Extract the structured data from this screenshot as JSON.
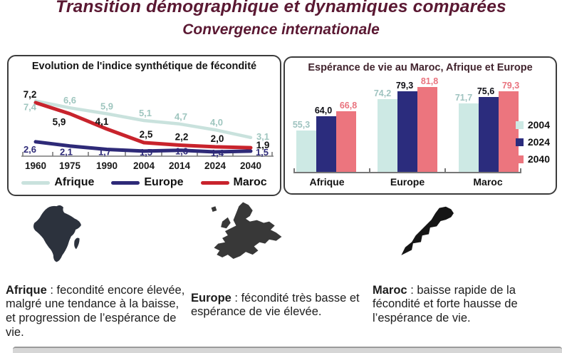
{
  "page": {
    "title": "Transition démographique et dynamiques comparées",
    "subtitle": "Convergence internationale"
  },
  "colors": {
    "title_maroon": "#5a1832",
    "afrique_line": "#c9e2dd",
    "afrique_label": "#9fc6bf",
    "europe_line": "#2e2a78",
    "maroc_line": "#c8232c",
    "maroc_label": "#111111",
    "bar_2004": "#cde9e4",
    "bar_2024": "#2b2c7d",
    "bar_2040": "#ec757e",
    "bar_label_2004": "#9fc3c0",
    "bar_label_2024": "#0d0d14",
    "bar_label_2040": "#e9737e",
    "axis": "#7a7a7a"
  },
  "chart_data": [
    {
      "type": "line",
      "title": "Evolution de l'indice synthétique de fécondité",
      "x": [
        "1960",
        "1975",
        "1990",
        "2004",
        "2014",
        "2024",
        "2040"
      ],
      "series": [
        {
          "name": "Afrique",
          "color": "#c9e2dd",
          "label_color": "#9fc6bf",
          "values": [
            7.4,
            6.6,
            5.9,
            5.1,
            4.7,
            4.0,
            3.1
          ]
        },
        {
          "name": "Europe",
          "color": "#2e2a78",
          "label_color": "#2e2a78",
          "values": [
            2.6,
            2.1,
            1.7,
            1.5,
            1.6,
            1.4,
            1.5
          ]
        },
        {
          "name": "Maroc",
          "color": "#c8232c",
          "label_color": "#111111",
          "values": [
            7.2,
            5.9,
            4.1,
            2.5,
            2.2,
            2.0,
            1.9
          ]
        }
      ],
      "legend_position": "bottom",
      "ylim": [
        0,
        8
      ],
      "grid": false
    },
    {
      "type": "bar",
      "title": "Espérance de vie au Maroc, Afrique et Europe",
      "categories": [
        "Afrique",
        "Europe",
        "Maroc"
      ],
      "series": [
        {
          "name": "2004",
          "color": "#cde9e4",
          "label_color": "#9fc3c0",
          "values": [
            55.3,
            74.2,
            71.7
          ]
        },
        {
          "name": "2024",
          "color": "#2b2c7d",
          "label_color": "#0d0d14",
          "values": [
            64.0,
            79.3,
            75.6
          ]
        },
        {
          "name": "2040",
          "color": "#ec757e",
          "label_color": "#e9737e",
          "values": [
            66.8,
            81.8,
            79.3
          ]
        }
      ],
      "legend_position": "right",
      "ylim": [
        30,
        85
      ],
      "grid": false
    }
  ],
  "captions": [
    {
      "label": "Afrique",
      "text": " : fecondité encore élevée, malgré une tendance à la baisse, et progression de l’espérance de vie."
    },
    {
      "label": "Europe",
      "text": " : fécondité très basse et espérance de vie élevée."
    },
    {
      "label": "Maroc",
      "text": " : baisse rapide de la fécondité et forte hausse de l’espérance de vie."
    }
  ],
  "maps": [
    {
      "name": "africa-silhouette"
    },
    {
      "name": "europe-silhouette"
    },
    {
      "name": "morocco-silhouette"
    }
  ]
}
